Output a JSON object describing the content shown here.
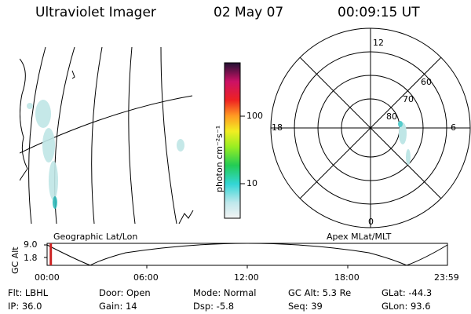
{
  "header": {
    "instrument": "Ultraviolet Imager",
    "date": "02 May 07",
    "time": "00:09:15 UT"
  },
  "geo_panel": {
    "label": "Geographic Lat/Lon"
  },
  "colorbar": {
    "unit": "photon cm⁻²s⁻¹",
    "ticks": [
      "100",
      "10"
    ]
  },
  "polar_plot": {
    "label": "Apex MLat/MLT",
    "mlt_labels": {
      "top": "12",
      "left": "18",
      "right": "6",
      "bottom": "0"
    },
    "lat_labels": [
      "60",
      "70",
      "80"
    ]
  },
  "altitude_plot": {
    "ylabel": "GC Alt",
    "yticks": [
      "9.0",
      "1.8"
    ],
    "xticks": [
      "00:00",
      "06:00",
      "12:00",
      "18:00",
      "23:59"
    ],
    "current_marker_hours": 0.15
  },
  "info": {
    "filter": "Flt: LBHL",
    "ip": "IP: 36.0",
    "door": "Door: Open",
    "gain": "Gain: 14",
    "mode": "Mode: Normal",
    "dsp": "Dsp:   -5.8",
    "gc_alt": "GC Alt: 5.3 Re",
    "seq": "Seq: 39",
    "glat": "GLat:  -44.3",
    "glon": "GLon:   93.6"
  },
  "colors": {
    "marker": "#cc2222",
    "aurora": "#bfe6e6"
  }
}
